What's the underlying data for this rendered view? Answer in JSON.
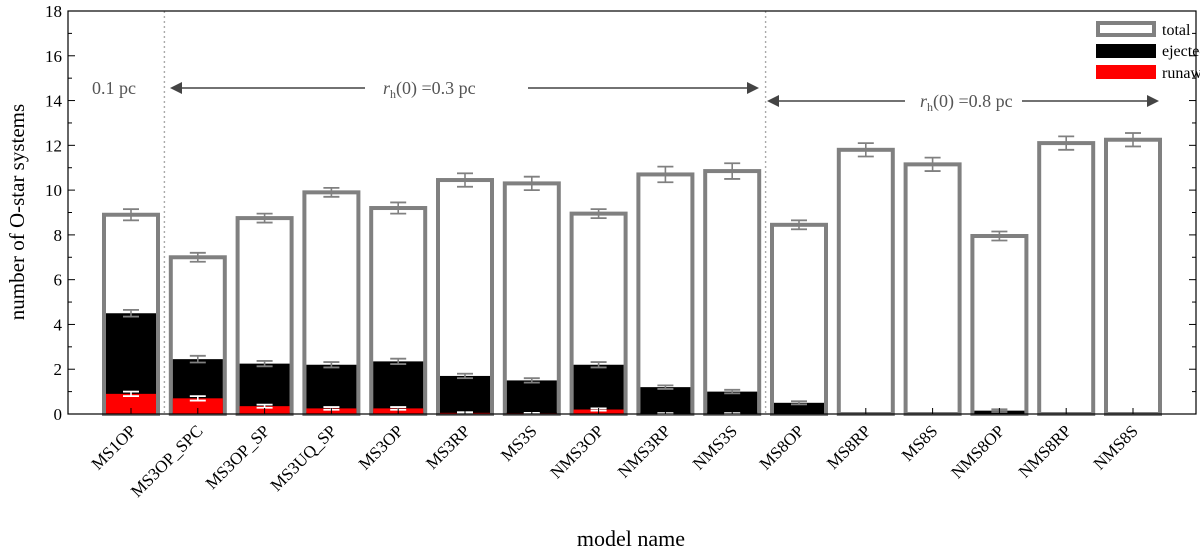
{
  "chart_data": {
    "type": "bar",
    "categories": [
      "MS1OP",
      "MS3OP_SPC",
      "MS3OP_SP",
      "MS3UQ_SP",
      "MS3OP",
      "MS3RP",
      "MS3S",
      "NMS3OP",
      "NMS3RP",
      "NMS3S",
      "MS8OP",
      "MS8RP",
      "MS8S",
      "NMS8OP",
      "NMS8RP",
      "NMS8S"
    ],
    "series": [
      {
        "name": "total",
        "values": [
          8.9,
          7.0,
          8.75,
          9.9,
          9.2,
          10.45,
          10.3,
          8.95,
          10.7,
          10.85,
          8.45,
          11.8,
          11.15,
          7.95,
          12.1,
          12.25
        ],
        "errors": [
          0.25,
          0.2,
          0.2,
          0.2,
          0.25,
          0.3,
          0.3,
          0.2,
          0.35,
          0.35,
          0.2,
          0.3,
          0.3,
          0.2,
          0.3,
          0.3
        ]
      },
      {
        "name": "ejected",
        "values": [
          4.5,
          2.45,
          2.25,
          2.2,
          2.35,
          1.7,
          1.5,
          2.2,
          1.2,
          1.0,
          0.5,
          0.02,
          0.02,
          0.15,
          0.02,
          0.02
        ],
        "errors": [
          0.15,
          0.15,
          0.12,
          0.12,
          0.12,
          0.1,
          0.1,
          0.12,
          0.08,
          0.08,
          0.07,
          0.02,
          0.02,
          0.06,
          0.02,
          0.02
        ]
      },
      {
        "name": "runaway",
        "values": [
          0.9,
          0.7,
          0.35,
          0.25,
          0.25,
          0.05,
          0.03,
          0.2,
          0.02,
          0.02,
          0.0,
          0.0,
          0.0,
          0.0,
          0.0,
          0.0
        ],
        "errors": [
          0.1,
          0.1,
          0.07,
          0.06,
          0.06,
          0.03,
          0.02,
          0.05,
          0.02,
          0.02,
          0.0,
          0.0,
          0.0,
          0.0,
          0.0,
          0.0
        ]
      }
    ],
    "xlabel": "model name",
    "ylabel": "number of O-star systems",
    "ylim": [
      0,
      18
    ],
    "yticks": [
      "0",
      "2",
      "4",
      "6",
      "8",
      "10",
      "12",
      "14",
      "16",
      "18"
    ],
    "legend": {
      "placement": "top-right",
      "entries": [
        "total",
        "ejected",
        "runaway"
      ]
    },
    "annotations": {
      "group1": "0.1 pc",
      "group2_symbol": "r",
      "group2_sub": "h",
      "group2_rest": "(0) =0.3 pc",
      "group3_symbol": "r",
      "group3_sub": "h",
      "group3_rest": "(0) =0.8 pc"
    },
    "separators_after": [
      "MS1OP",
      "NMS3S"
    ],
    "colors": {
      "total": "#808080",
      "ejected": "#000000",
      "runaway": "#ff0000",
      "error": "#808080",
      "separator": "#aaaaaa",
      "arrow": "#444444"
    }
  }
}
